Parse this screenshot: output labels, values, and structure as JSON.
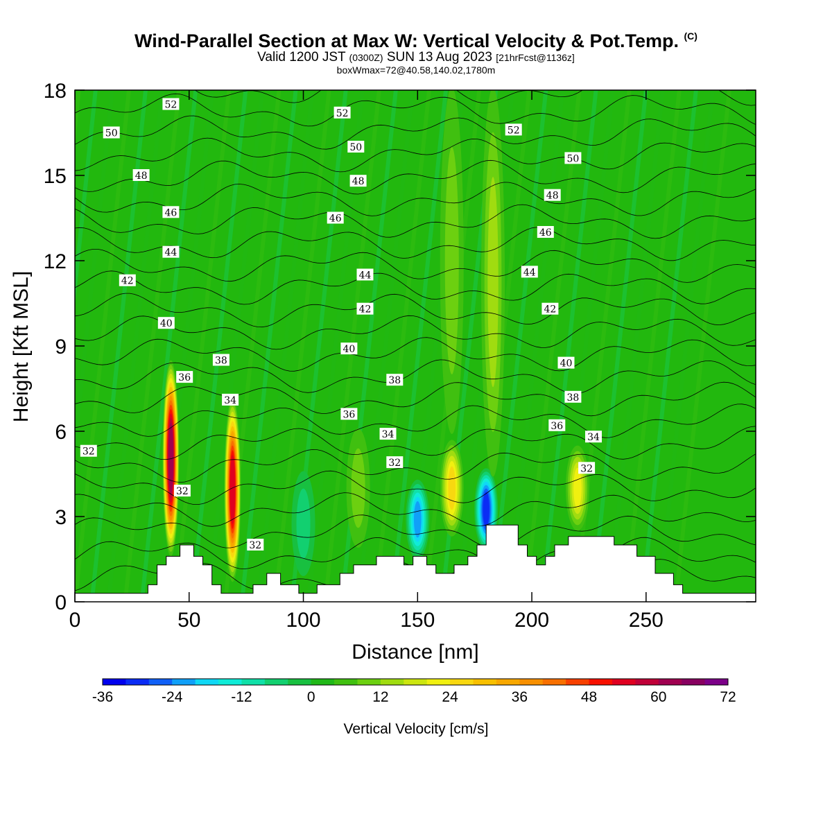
{
  "header": {
    "title_main": "Wind-Parallel Section at Max W: Vertical Velocity & Pot.Temp.",
    "title_copyright": "(C)",
    "valid_prefix": "Valid 1200 JST",
    "valid_utc": "(0300Z)",
    "valid_date": "SUN 13 Aug 2023",
    "valid_fcst": "[21hrFcst@1136z]",
    "box_info": "boxWmax=72@40.58,140.02,1780m"
  },
  "colors": {
    "background_field": "#22b80e",
    "terrain": "#ffffff"
  },
  "chart_data": {
    "type": "heatmap",
    "xlabel": "Distance [nm]",
    "ylabel": "Height [Kft MSL]",
    "xlim": [
      0,
      298
    ],
    "ylim": [
      0,
      18
    ],
    "x_ticks": [
      0,
      50,
      100,
      150,
      200,
      250
    ],
    "y_ticks": [
      0,
      3,
      6,
      9,
      12,
      15,
      18
    ],
    "colorbar": {
      "title": "Vertical Velocity [cm/s]",
      "range": [
        -36,
        72
      ],
      "step": 4,
      "labels": [
        -36,
        -24,
        -12,
        0,
        12,
        24,
        36,
        48,
        60,
        72
      ],
      "colors": [
        "#0000ee",
        "#0a2cf5",
        "#1060f7",
        "#10a0f8",
        "#10d8f5",
        "#10ecd8",
        "#10e0a8",
        "#12d070",
        "#18c040",
        "#20b818",
        "#40c010",
        "#6cd010",
        "#a0dc10",
        "#cce610",
        "#f0f010",
        "#f8d810",
        "#f8c000",
        "#f8a800",
        "#f89000",
        "#f87000",
        "#f84000",
        "#f81000",
        "#e00020",
        "#c00038",
        "#a00050",
        "#880060",
        "#7c0088"
      ]
    },
    "features": [
      {
        "x": 42,
        "z0": 1.7,
        "z1": 8.4,
        "w": 60
      },
      {
        "x": 69,
        "z0": 0.8,
        "z1": 7.1,
        "w": 52
      },
      {
        "x": 165,
        "z0": 2.4,
        "z1": 5.6,
        "w": 24
      },
      {
        "x": 220,
        "z0": 2.6,
        "z1": 5.4,
        "w": 22
      },
      {
        "x": 150,
        "z0": 1.6,
        "z1": 4.2,
        "w": -24
      },
      {
        "x": 180,
        "z0": 1.9,
        "z1": 4.6,
        "w": -32
      },
      {
        "x": 124,
        "z0": 2.0,
        "z1": 6.0,
        "w": 10
      },
      {
        "x": 183,
        "z0": 4.5,
        "z1": 18.0,
        "w": 12
      },
      {
        "x": 165,
        "z0": 6.0,
        "z1": 18.0,
        "w": 10
      },
      {
        "x": 100,
        "z0": 1.0,
        "z1": 4.5,
        "w": -8
      }
    ],
    "terrain": {
      "x": [
        0,
        32,
        32,
        36,
        36,
        40,
        40,
        46,
        46,
        52,
        52,
        56,
        56,
        60,
        60,
        64,
        64,
        78,
        78,
        84,
        84,
        90,
        90,
        98,
        98,
        106,
        106,
        116,
        116,
        122,
        122,
        132,
        132,
        144,
        144,
        148,
        148,
        154,
        154,
        158,
        158,
        166,
        166,
        172,
        172,
        176,
        176,
        180,
        180,
        194,
        194,
        198,
        198,
        202,
        202,
        206,
        206,
        210,
        210,
        216,
        216,
        236,
        236,
        246,
        246,
        254,
        254,
        262,
        262,
        266,
        266,
        298
      ],
      "y": [
        0.3,
        0.3,
        0.6,
        0.6,
        1.3,
        1.3,
        1.6,
        1.6,
        2.0,
        2.0,
        1.6,
        1.6,
        1.3,
        1.3,
        0.6,
        0.6,
        0.3,
        0.3,
        0.6,
        0.6,
        1.0,
        1.0,
        0.6,
        0.6,
        0.3,
        0.3,
        0.6,
        0.6,
        1.0,
        1.0,
        1.3,
        1.3,
        1.6,
        1.6,
        1.3,
        1.3,
        1.6,
        1.6,
        1.3,
        1.3,
        1.0,
        1.0,
        1.3,
        1.3,
        1.6,
        1.6,
        2.0,
        2.0,
        2.7,
        2.7,
        2.0,
        2.0,
        1.6,
        1.6,
        1.3,
        1.3,
        1.6,
        1.6,
        2.0,
        2.0,
        2.3,
        2.3,
        2.0,
        2.0,
        1.6,
        1.6,
        1.0,
        1.0,
        0.6,
        0.6,
        0.3,
        0.3
      ]
    },
    "isentropes": {
      "theta_min": 30,
      "theta_max": 53,
      "labels": [
        {
          "text": "52",
          "x": 42,
          "y": 17.5
        },
        {
          "text": "52",
          "x": 117,
          "y": 17.2
        },
        {
          "text": "52",
          "x": 192,
          "y": 16.6
        },
        {
          "text": "50",
          "x": 16,
          "y": 16.5
        },
        {
          "text": "50",
          "x": 123,
          "y": 16.0
        },
        {
          "text": "50",
          "x": 218,
          "y": 15.6
        },
        {
          "text": "48",
          "x": 29,
          "y": 15.0
        },
        {
          "text": "48",
          "x": 124,
          "y": 14.8
        },
        {
          "text": "48",
          "x": 209,
          "y": 14.3
        },
        {
          "text": "46",
          "x": 42,
          "y": 13.7
        },
        {
          "text": "46",
          "x": 114,
          "y": 13.5
        },
        {
          "text": "46",
          "x": 206,
          "y": 13.0
        },
        {
          "text": "44",
          "x": 42,
          "y": 12.3
        },
        {
          "text": "44",
          "x": 127,
          "y": 11.5
        },
        {
          "text": "44",
          "x": 199,
          "y": 11.6
        },
        {
          "text": "42",
          "x": 23,
          "y": 11.3
        },
        {
          "text": "42",
          "x": 127,
          "y": 10.3
        },
        {
          "text": "42",
          "x": 208,
          "y": 10.3
        },
        {
          "text": "40",
          "x": 40,
          "y": 9.8
        },
        {
          "text": "40",
          "x": 120,
          "y": 8.9
        },
        {
          "text": "40",
          "x": 215,
          "y": 8.4
        },
        {
          "text": "38",
          "x": 64,
          "y": 8.5
        },
        {
          "text": "38",
          "x": 140,
          "y": 7.8
        },
        {
          "text": "38",
          "x": 218,
          "y": 7.2
        },
        {
          "text": "36",
          "x": 48,
          "y": 7.9
        },
        {
          "text": "36",
          "x": 120,
          "y": 6.6
        },
        {
          "text": "36",
          "x": 211,
          "y": 6.2
        },
        {
          "text": "34",
          "x": 68,
          "y": 7.1
        },
        {
          "text": "34",
          "x": 137,
          "y": 5.9
        },
        {
          "text": "34",
          "x": 227,
          "y": 5.8
        },
        {
          "text": "32",
          "x": 6,
          "y": 5.3
        },
        {
          "text": "32",
          "x": 140,
          "y": 4.9
        },
        {
          "text": "32",
          "x": 224,
          "y": 4.7
        },
        {
          "text": "32",
          "x": 47,
          "y": 3.9
        },
        {
          "text": "32",
          "x": 79,
          "y": 2.0
        }
      ]
    }
  }
}
